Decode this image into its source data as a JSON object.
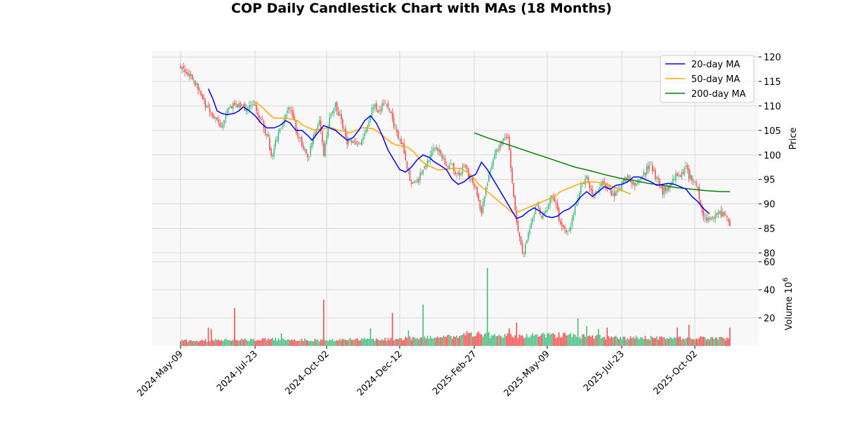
{
  "chart_data": {
    "type": "candlestick",
    "title": "COP Daily Candlestick Chart with MAs (18 Months)",
    "colors": {
      "up": "#3dbb7a",
      "down": "#f24848",
      "ma20": "#0000ff",
      "ma50": "#ffa500",
      "ma200": "#008000",
      "panel_bg": "#f8f8f8",
      "grid": "#d9d9d9"
    },
    "legend": {
      "placement": "top-right",
      "entries": [
        {
          "name": "20-day MA",
          "color": "#0000ff"
        },
        {
          "name": "50-day MA",
          "color": "#ffa500"
        },
        {
          "name": "200-day MA",
          "color": "#008000"
        }
      ]
    },
    "price_panel": {
      "ylabel": "Price",
      "ylim": [
        78.2,
        121.3
      ],
      "yticks": [
        "120",
        "115",
        "110",
        "105",
        "100",
        "95",
        "90",
        "85",
        "80"
      ],
      "ytick_values": [
        120,
        115,
        110,
        105,
        100,
        95,
        90,
        85,
        80
      ]
    },
    "volume_panel": {
      "ylabel": "Volume",
      "ylabel_exponent": "10",
      "ylabel_exponent_power": "6",
      "ylim": [
        0,
        60
      ],
      "yticks": [
        "60",
        "40",
        "20"
      ],
      "ytick_values": [
        60,
        40,
        20
      ],
      "units": "millions of shares"
    },
    "x_axis": {
      "grid": true,
      "tick_labels": [
        "2024-May-09",
        "2024-Jul-23",
        "2024-Oct-02",
        "2024-Dec-12",
        "2025-Feb-27",
        "2025-May-09",
        "2025-Jul-23",
        "2025-Oct-02"
      ],
      "tick_sessions": [
        0,
        51,
        100,
        150,
        201,
        251,
        302,
        352
      ],
      "session_count": 377
    },
    "price_path": [
      [
        0,
        118.3
      ],
      [
        6,
        116.5
      ],
      [
        12,
        113.5
      ],
      [
        18,
        109.5
      ],
      [
        24,
        107.0
      ],
      [
        28,
        105.2
      ],
      [
        32,
        109.0
      ],
      [
        36,
        110.5
      ],
      [
        41,
        110.0
      ],
      [
        46,
        109.5
      ],
      [
        51,
        110.2
      ],
      [
        56,
        106.5
      ],
      [
        60,
        103.2
      ],
      [
        62,
        99.5
      ],
      [
        66,
        103.5
      ],
      [
        70,
        106.5
      ],
      [
        74,
        110.0
      ],
      [
        77,
        108.0
      ],
      [
        80,
        104.0
      ],
      [
        84,
        101.5
      ],
      [
        87,
        99.0
      ],
      [
        91,
        104.0
      ],
      [
        95,
        106.5
      ],
      [
        98,
        100.0
      ],
      [
        102,
        107.5
      ],
      [
        106,
        110.0
      ],
      [
        110,
        107.0
      ],
      [
        114,
        102.5
      ],
      [
        118,
        103.0
      ],
      [
        122,
        102.0
      ],
      [
        126,
        104.5
      ],
      [
        128,
        106.0
      ],
      [
        132,
        110.0
      ],
      [
        136,
        109.0
      ],
      [
        140,
        111.0
      ],
      [
        144,
        108.0
      ],
      [
        148,
        104.0
      ],
      [
        152,
        102.0
      ],
      [
        156,
        96.5
      ],
      [
        158,
        93.5
      ],
      [
        162,
        94.5
      ],
      [
        166,
        97.0
      ],
      [
        170,
        99.5
      ],
      [
        174,
        102.0
      ],
      [
        178,
        100.0
      ],
      [
        182,
        98.0
      ],
      [
        186,
        97.5
      ],
      [
        190,
        96.0
      ],
      [
        194,
        97.5
      ],
      [
        198,
        95.5
      ],
      [
        202,
        93.5
      ],
      [
        206,
        88.0
      ],
      [
        208,
        92.0
      ],
      [
        212,
        97.5
      ],
      [
        216,
        100.5
      ],
      [
        220,
        102.5
      ],
      [
        224,
        103.5
      ],
      [
        227,
        95.0
      ],
      [
        229,
        88.0
      ],
      [
        231,
        84.5
      ],
      [
        233,
        81.5
      ],
      [
        235,
        80.0
      ],
      [
        238,
        84.0
      ],
      [
        241,
        87.5
      ],
      [
        244,
        89.5
      ],
      [
        247,
        87.0
      ],
      [
        250,
        88.5
      ],
      [
        254,
        91.5
      ],
      [
        257,
        90.0
      ],
      [
        259,
        87.0
      ],
      [
        262,
        85.0
      ],
      [
        266,
        84.5
      ],
      [
        270,
        89.0
      ],
      [
        274,
        93.5
      ],
      [
        278,
        95.5
      ],
      [
        282,
        92.0
      ],
      [
        286,
        92.5
      ],
      [
        290,
        94.5
      ],
      [
        294,
        92.5
      ],
      [
        298,
        92.0
      ],
      [
        302,
        94.0
      ],
      [
        306,
        95.5
      ],
      [
        310,
        94.0
      ],
      [
        314,
        94.5
      ],
      [
        318,
        96.5
      ],
      [
        322,
        98.0
      ],
      [
        326,
        95.0
      ],
      [
        330,
        92.5
      ],
      [
        334,
        93.5
      ],
      [
        338,
        95.5
      ],
      [
        342,
        96.0
      ],
      [
        346,
        97.5
      ],
      [
        348,
        95.5
      ],
      [
        352,
        95.0
      ],
      [
        354,
        93.5
      ],
      [
        356,
        89.5
      ],
      [
        358,
        87.5
      ],
      [
        362,
        87.0
      ],
      [
        366,
        87.5
      ],
      [
        370,
        88.0
      ],
      [
        373,
        87.5
      ],
      [
        376,
        86.0
      ]
    ],
    "ma20": [
      [
        19,
        113.5
      ],
      [
        22,
        111.5
      ],
      [
        25,
        109.0
      ],
      [
        28,
        108.5
      ],
      [
        32,
        108.2
      ],
      [
        37,
        108.5
      ],
      [
        40,
        109.0
      ],
      [
        43,
        109.8
      ],
      [
        47,
        109.0
      ],
      [
        51,
        108.0
      ],
      [
        55,
        106.5
      ],
      [
        59,
        105.5
      ],
      [
        64,
        105.5
      ],
      [
        68,
        106.0
      ],
      [
        72,
        107.0
      ],
      [
        75,
        106.5
      ],
      [
        79,
        105.0
      ],
      [
        83,
        105.0
      ],
      [
        87,
        104.0
      ],
      [
        90,
        103.0
      ],
      [
        94,
        104.5
      ],
      [
        98,
        106.0
      ],
      [
        102,
        105.5
      ],
      [
        106,
        105.0
      ],
      [
        110,
        104.0
      ],
      [
        114,
        103.0
      ],
      [
        118,
        103.5
      ],
      [
        122,
        105.0
      ],
      [
        126,
        107.0
      ],
      [
        130,
        108.0
      ],
      [
        134,
        106.5
      ],
      [
        138,
        104.0
      ],
      [
        142,
        101.0
      ],
      [
        146,
        99.0
      ],
      [
        150,
        97.0
      ],
      [
        154,
        96.5
      ],
      [
        158,
        97.5
      ],
      [
        162,
        99.0
      ],
      [
        166,
        100.0
      ],
      [
        170,
        99.5
      ],
      [
        174,
        98.5
      ],
      [
        178,
        97.8
      ],
      [
        182,
        97.0
      ],
      [
        186,
        95.0
      ],
      [
        190,
        94.0
      ],
      [
        194,
        94.5
      ],
      [
        198,
        95.5
      ],
      [
        202,
        96.0
      ],
      [
        206,
        98.5
      ],
      [
        210,
        97.0
      ],
      [
        214,
        95.0
      ],
      [
        218,
        93.0
      ],
      [
        222,
        91.0
      ],
      [
        226,
        89.0
      ],
      [
        230,
        87.0
      ],
      [
        234,
        87.5
      ],
      [
        238,
        88.5
      ],
      [
        242,
        89.2
      ],
      [
        246,
        88.5
      ],
      [
        250,
        87.5
      ],
      [
        254,
        87.2
      ],
      [
        258,
        87.5
      ],
      [
        262,
        88.5
      ],
      [
        266,
        89.0
      ],
      [
        270,
        90.0
      ],
      [
        274,
        91.5
      ],
      [
        278,
        92.5
      ],
      [
        282,
        91.5
      ],
      [
        286,
        92.5
      ],
      [
        290,
        93.5
      ],
      [
        294,
        93.0
      ],
      [
        298,
        93.8
      ],
      [
        302,
        94.0
      ],
      [
        306,
        94.5
      ],
      [
        310,
        95.5
      ],
      [
        314,
        95.5
      ],
      [
        318,
        95.0
      ],
      [
        322,
        94.5
      ],
      [
        326,
        93.8
      ],
      [
        330,
        94.0
      ],
      [
        334,
        94.2
      ],
      [
        338,
        94.0
      ],
      [
        342,
        93.5
      ],
      [
        346,
        93.0
      ],
      [
        350,
        91.5
      ],
      [
        354,
        90.5
      ],
      [
        358,
        89.0
      ],
      [
        362,
        88.0
      ]
    ],
    "ma50": [
      [
        50,
        111.0
      ],
      [
        55,
        110.0
      ],
      [
        60,
        108.5
      ],
      [
        64,
        107.5
      ],
      [
        68,
        107.5
      ],
      [
        72,
        107.5
      ],
      [
        76,
        107.3
      ],
      [
        80,
        107.0
      ],
      [
        84,
        106.0
      ],
      [
        88,
        105.5
      ],
      [
        92,
        105.0
      ],
      [
        96,
        105.3
      ],
      [
        100,
        105.5
      ],
      [
        104,
        105.5
      ],
      [
        108,
        105.0
      ],
      [
        112,
        104.8
      ],
      [
        116,
        104.5
      ],
      [
        120,
        105.0
      ],
      [
        124,
        105.5
      ],
      [
        128,
        105.5
      ],
      [
        132,
        105.3
      ],
      [
        136,
        104.5
      ],
      [
        140,
        103.5
      ],
      [
        144,
        102.5
      ],
      [
        148,
        102.0
      ],
      [
        152,
        101.8
      ],
      [
        156,
        101.5
      ],
      [
        160,
        100.5
      ],
      [
        164,
        99.0
      ],
      [
        168,
        98.0
      ],
      [
        172,
        97.5
      ],
      [
        176,
        97.0
      ],
      [
        180,
        97.0
      ],
      [
        184,
        97.2
      ],
      [
        188,
        97.3
      ],
      [
        192,
        97.2
      ],
      [
        196,
        96.5
      ],
      [
        200,
        95.5
      ],
      [
        204,
        94.0
      ],
      [
        208,
        93.0
      ],
      [
        212,
        92.0
      ],
      [
        216,
        91.0
      ],
      [
        220,
        90.0
      ],
      [
        224,
        89.0
      ],
      [
        228,
        88.0
      ],
      [
        232,
        88.5
      ],
      [
        236,
        89.0
      ],
      [
        240,
        89.5
      ],
      [
        244,
        90.0
      ],
      [
        248,
        90.5
      ],
      [
        252,
        91.0
      ],
      [
        256,
        91.5
      ],
      [
        260,
        92.5
      ],
      [
        264,
        93.0
      ],
      [
        268,
        93.5
      ],
      [
        272,
        94.0
      ],
      [
        276,
        94.3
      ],
      [
        280,
        94.5
      ],
      [
        284,
        94.5
      ],
      [
        288,
        94.3
      ],
      [
        292,
        94.0
      ],
      [
        296,
        93.5
      ],
      [
        300,
        93.0
      ],
      [
        304,
        92.5
      ],
      [
        308,
        92.0
      ]
    ],
    "ma200": [
      [
        201,
        104.5
      ],
      [
        210,
        103.5
      ],
      [
        220,
        102.5
      ],
      [
        230,
        101.5
      ],
      [
        240,
        100.5
      ],
      [
        250,
        99.5
      ],
      [
        260,
        98.5
      ],
      [
        270,
        97.5
      ],
      [
        280,
        96.8
      ],
      [
        290,
        96.0
      ],
      [
        300,
        95.3
      ],
      [
        310,
        94.8
      ],
      [
        320,
        94.2
      ],
      [
        330,
        93.8
      ],
      [
        340,
        93.3
      ],
      [
        350,
        93.0
      ],
      [
        360,
        92.7
      ],
      [
        370,
        92.5
      ],
      [
        376,
        92.5
      ]
    ],
    "volume_base": [
      [
        0,
        3.5
      ],
      [
        30,
        4.0
      ],
      [
        60,
        4.5
      ],
      [
        100,
        4.0
      ],
      [
        140,
        4.8
      ],
      [
        180,
        6.0
      ],
      [
        200,
        8.0
      ],
      [
        230,
        7.0
      ],
      [
        260,
        7.5
      ],
      [
        290,
        6.0
      ],
      [
        320,
        5.5
      ],
      [
        350,
        5.5
      ],
      [
        376,
        5.0
      ]
    ],
    "volume_spikes": [
      [
        19,
        13.0
      ],
      [
        21,
        12.0
      ],
      [
        37,
        27.0
      ],
      [
        69,
        9.0
      ],
      [
        98,
        33.0
      ],
      [
        130,
        12.5
      ],
      [
        145,
        23.5
      ],
      [
        156,
        11.0
      ],
      [
        166,
        29.5
      ],
      [
        196,
        10.5
      ],
      [
        210,
        55.5
      ],
      [
        225,
        12.5
      ],
      [
        230,
        16.5
      ],
      [
        272,
        19.5
      ],
      [
        278,
        14.0
      ],
      [
        286,
        12.0
      ],
      [
        292,
        13.0
      ],
      [
        340,
        13.0
      ],
      [
        348,
        15.0
      ],
      [
        376,
        13.0
      ]
    ]
  }
}
